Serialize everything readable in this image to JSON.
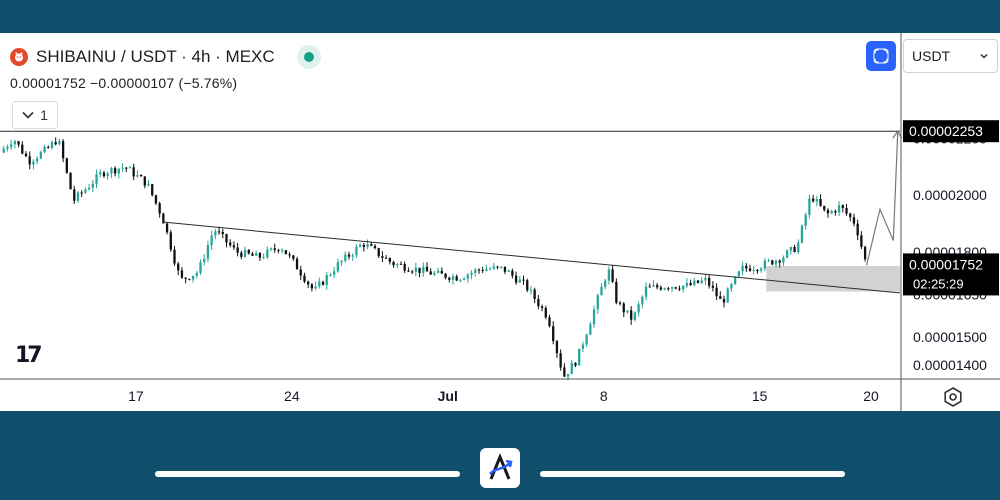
{
  "header": {
    "title": "SHIBAINU / USDT · 4h · MEXC",
    "ohlc_line": "0.00001752  −0.00000107 (−5.76%)",
    "currency": "USDT",
    "collapse_label": "1"
  },
  "logo_text": "17",
  "colors": {
    "up": "#26a69a",
    "down": "#111111",
    "frame": "#0f4f6b",
    "badge_bg": "#000000",
    "zone": "#c9cacc",
    "accent": "#2962ff"
  },
  "icons": [
    "shiba-logo-icon",
    "status-dot-icon",
    "fullscreen-icon",
    "chevron-down-icon",
    "settings-hexagon-icon",
    "app-logo-icon"
  ],
  "chart_data": {
    "type": "candlestick",
    "symbol": "SHIBAINU / USDT",
    "interval": "4h",
    "exchange": "MEXC",
    "last_price": "0.00001752",
    "change": "−0.00000107",
    "change_pct": "−5.76%",
    "countdown": "02:25:29",
    "target_label": "0.00002253",
    "x_ticks": [
      "17",
      "24",
      "Jul",
      "8",
      "15",
      "20"
    ],
    "x_tick_day": [
      17,
      24,
      31,
      38,
      45,
      50
    ],
    "y_ticks": [
      "0.00002200",
      "0.00002000",
      "0.00001800",
      "0.00001650",
      "0.00001500",
      "0.00001400"
    ],
    "y_tick_values": [
      2.2,
      2.0,
      1.8,
      1.65,
      1.5,
      1.4
    ],
    "y_range_e5": [
      1.355,
      2.36
    ],
    "x_range_day": [
      10.9,
      51.3
    ],
    "price_unit": "1e-5 USDT",
    "close_path": [
      [
        10.9,
        2.15
      ],
      [
        11.5,
        2.2
      ],
      [
        12.2,
        2.12
      ],
      [
        13,
        2.16
      ],
      [
        13.5,
        2.2
      ],
      [
        14.2,
        1.98
      ],
      [
        15.5,
        2.08
      ],
      [
        16.5,
        2.1
      ],
      [
        17.5,
        2.04
      ],
      [
        18.2,
        1.92
      ],
      [
        19,
        1.7
      ],
      [
        19.8,
        1.73
      ],
      [
        20.5,
        1.88
      ],
      [
        21.5,
        1.8
      ],
      [
        22.5,
        1.78
      ],
      [
        23.5,
        1.82
      ],
      [
        24.2,
        1.75
      ],
      [
        25,
        1.66
      ],
      [
        26,
        1.75
      ],
      [
        27.2,
        1.83
      ],
      [
        28.5,
        1.76
      ],
      [
        29.5,
        1.74
      ],
      [
        30.5,
        1.72
      ],
      [
        31.5,
        1.71
      ],
      [
        32.5,
        1.74
      ],
      [
        33.5,
        1.74
      ],
      [
        34.5,
        1.68
      ],
      [
        35.5,
        1.57
      ],
      [
        36.2,
        1.36
      ],
      [
        36.8,
        1.42
      ],
      [
        37.5,
        1.58
      ],
      [
        38.2,
        1.74
      ],
      [
        38.6,
        1.62
      ],
      [
        39.3,
        1.56
      ],
      [
        39.9,
        1.67
      ],
      [
        40.8,
        1.68
      ],
      [
        41.8,
        1.68
      ],
      [
        42.6,
        1.7
      ],
      [
        43.3,
        1.62
      ],
      [
        44.2,
        1.74
      ],
      [
        45,
        1.75
      ],
      [
        46,
        1.78
      ],
      [
        46.7,
        1.82
      ],
      [
        47.3,
        2.0
      ],
      [
        48,
        1.93
      ],
      [
        48.6,
        1.96
      ],
      [
        49.3,
        1.9
      ],
      [
        49.8,
        1.75
      ]
    ],
    "trendline": [
      [
        18.2,
        1.905
      ],
      [
        51.3,
        1.655
      ]
    ],
    "target_line": 2.2253,
    "zone": {
      "x_start": 45.3,
      "y_low": 1.66,
      "y_high": 1.75
    },
    "projection": [
      [
        49.8,
        1.752
      ],
      [
        50.4,
        1.95
      ],
      [
        51.0,
        1.84
      ],
      [
        51.2,
        2.225
      ]
    ]
  }
}
